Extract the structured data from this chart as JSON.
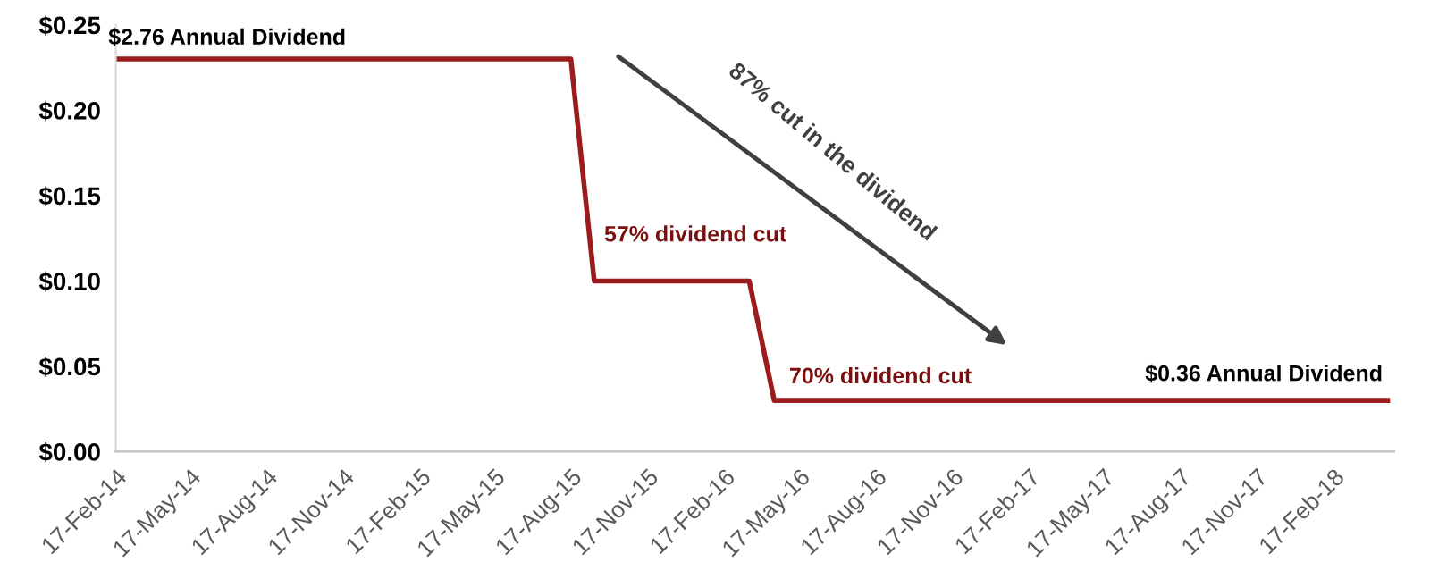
{
  "chart_data": {
    "type": "line",
    "x": [
      "2014-02-17",
      "2015-08-17",
      "2015-09-14",
      "2016-03-18",
      "2016-04-17",
      "2018-04-23"
    ],
    "series": [
      {
        "color": "#9b1c1c",
        "values": [
          0.23,
          0.23,
          0.1,
          0.1,
          0.03,
          0.03
        ]
      }
    ],
    "xlim": [
      "2014-02-17",
      "2018-05-01"
    ],
    "xticks": [
      {
        "value": "2014-02-17",
        "label": "17-Feb-14"
      },
      {
        "value": "2014-05-17",
        "label": "17-May-14"
      },
      {
        "value": "2014-08-17",
        "label": "17-Aug-14"
      },
      {
        "value": "2014-11-17",
        "label": "17-Nov-14"
      },
      {
        "value": "2015-02-17",
        "label": "17-Feb-15"
      },
      {
        "value": "2015-05-17",
        "label": "17-May-15"
      },
      {
        "value": "2015-08-17",
        "label": "17-Aug-15"
      },
      {
        "value": "2015-11-17",
        "label": "17-Nov-15"
      },
      {
        "value": "2016-02-17",
        "label": "17-Feb-16"
      },
      {
        "value": "2016-05-17",
        "label": "17-May-16"
      },
      {
        "value": "2016-08-17",
        "label": "17-Aug-16"
      },
      {
        "value": "2016-11-17",
        "label": "17-Nov-16"
      },
      {
        "value": "2017-02-17",
        "label": "17-Feb-17"
      },
      {
        "value": "2017-05-17",
        "label": "17-May-17"
      },
      {
        "value": "2017-08-17",
        "label": "17-Aug-17"
      },
      {
        "value": "2017-11-17",
        "label": "17-Nov-17"
      },
      {
        "value": "2018-02-17",
        "label": "17-Feb-18"
      }
    ],
    "ylim": [
      0,
      0.25
    ],
    "yticks": [
      {
        "value": 0,
        "label": "$0.00"
      },
      {
        "value": 0.05,
        "label": "$0.05"
      },
      {
        "value": 0.1,
        "label": "$0.10"
      },
      {
        "value": 0.15,
        "label": "$0.15"
      },
      {
        "value": 0.2,
        "label": "$0.20"
      },
      {
        "value": 0.25,
        "label": "$0.25"
      }
    ],
    "grid": false,
    "legend": false,
    "marker": "none",
    "line_style": "solid",
    "annotations": [
      {
        "text": "$2.76 Annual Dividend",
        "x": "2014-02-17",
        "y": 0.23
      },
      {
        "text": "57% dividend cut",
        "x": "2015-09-14",
        "y": 0.1
      },
      {
        "text": "70% dividend cut",
        "x": "2016-04-17",
        "y": 0.03
      },
      {
        "text": "$0.36 Annual Dividend",
        "x": "2018-04-23",
        "y": 0.03
      },
      "87% cut in the dividend"
    ]
  }
}
